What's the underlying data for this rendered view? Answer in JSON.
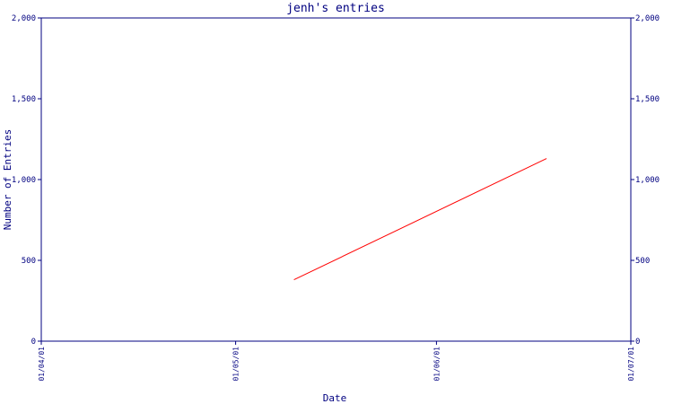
{
  "chart_data": {
    "type": "line",
    "title": "jenh's entries",
    "xlabel": "Date",
    "ylabel": "Number of Entries",
    "x_ticks": [
      "01/04/01",
      "01/05/01",
      "01/06/01",
      "01/07/01"
    ],
    "y_ticks": [
      "0",
      "500",
      "1,000",
      "1,500",
      "2,000"
    ],
    "ylim": [
      0,
      2000
    ],
    "series": [
      {
        "x": [
          "2001-05-10",
          "2001-06-18"
        ],
        "y": [
          380,
          1130
        ]
      }
    ],
    "grid": false,
    "colors": {
      "axis": "#000080",
      "line": "#ff0000",
      "text": "#000080"
    }
  }
}
